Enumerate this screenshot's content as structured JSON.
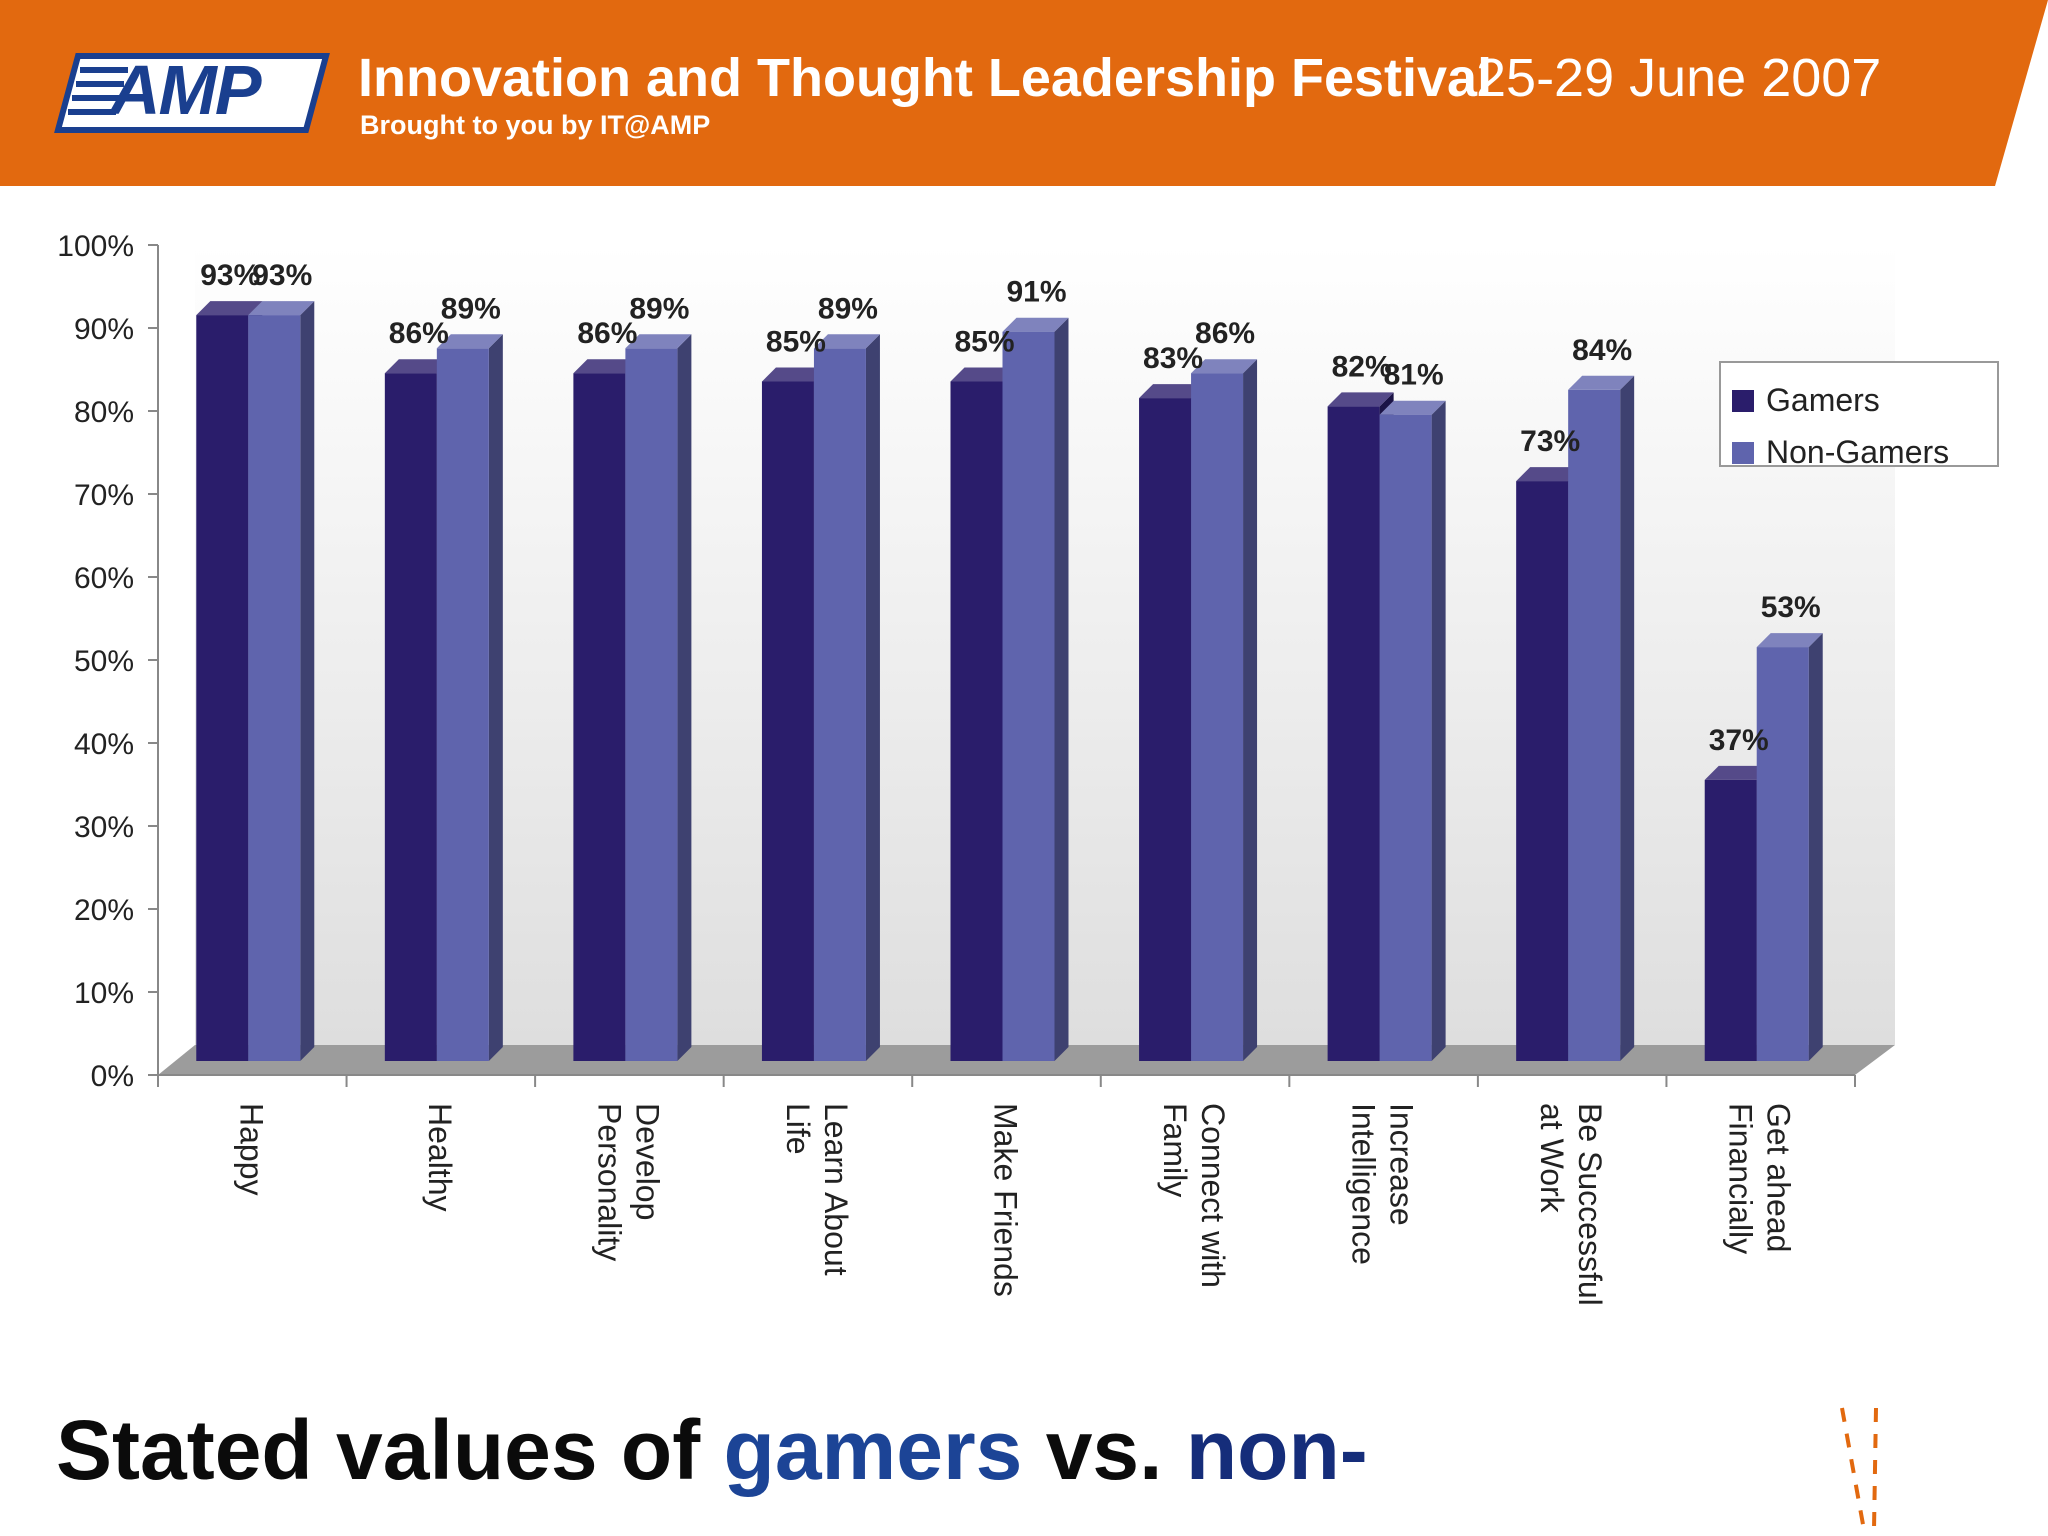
{
  "header": {
    "logo": "AMP",
    "title": "Innovation and Thought Leadership Festival",
    "dates": "25-29 June 2007",
    "subtitle": "Brought to you by IT@AMP"
  },
  "caption": {
    "part1": "Stated values of ",
    "word1": "gamers",
    "part2": " vs. ",
    "word2": "non-"
  },
  "colors": {
    "banner": "#e2690f",
    "gamers": "#2a1d6b",
    "non_gamers": "#5f64ad",
    "logo_blue": "#1a3f8f"
  },
  "chart_data": {
    "type": "bar",
    "title": "",
    "xlabel": "",
    "ylabel": "",
    "ylim": [
      0,
      100
    ],
    "yticks": [
      0,
      10,
      20,
      30,
      40,
      50,
      60,
      70,
      80,
      90,
      100
    ],
    "ytick_labels": [
      "0%",
      "10%",
      "20%",
      "30%",
      "40%",
      "50%",
      "60%",
      "70%",
      "80%",
      "90%",
      "100%"
    ],
    "grid": false,
    "legend_position": "right",
    "categories": [
      [
        "Happy"
      ],
      [
        "Healthy"
      ],
      [
        "Develop",
        "Personality"
      ],
      [
        "Learn About",
        "Life"
      ],
      [
        "Make Friends"
      ],
      [
        "Connect with",
        "Family"
      ],
      [
        "Increase",
        "Intelligence"
      ],
      [
        "Be Successful",
        "at Work"
      ],
      [
        "Get ahead",
        "Financially"
      ]
    ],
    "series": [
      {
        "name": "Gamers",
        "values": [
          93,
          86,
          86,
          85,
          85,
          83,
          82,
          73,
          37
        ],
        "labels": [
          "93%",
          "86%",
          "86%",
          "85%",
          "85%",
          "83%",
          "82%",
          "73%",
          "37%"
        ]
      },
      {
        "name": "Non-Gamers",
        "values": [
          93,
          89,
          89,
          89,
          91,
          86,
          81,
          84,
          53
        ],
        "labels": [
          "93%",
          "89%",
          "89%",
          "89%",
          "91%",
          "86%",
          "81%",
          "84%",
          "53%"
        ]
      }
    ]
  }
}
